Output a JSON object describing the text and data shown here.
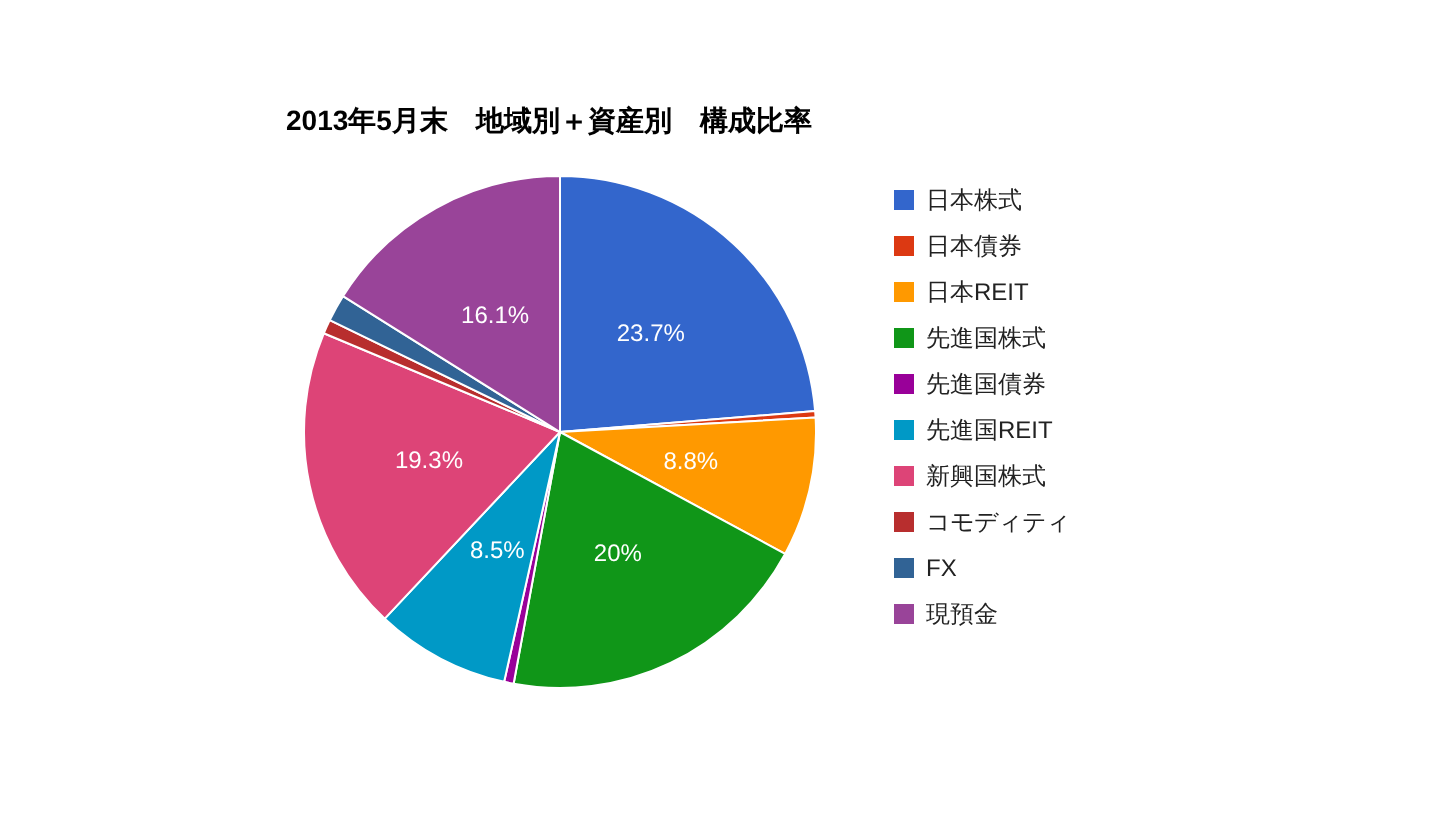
{
  "chart_data": {
    "type": "pie",
    "title": "2013年5月末　地域別＋資産別　構成比率",
    "categories": [
      "日本株式",
      "日本債券",
      "日本REIT",
      "先進国株式",
      "先進国債券",
      "先進国REIT",
      "新興国株式",
      "コモディティ",
      "FX",
      "現預金"
    ],
    "values": [
      23.7,
      0.4,
      8.8,
      20,
      0.6,
      8.5,
      19.3,
      0.9,
      1.7,
      16.1
    ],
    "value_labels": [
      "23.7%",
      null,
      "8.8%",
      "20%",
      null,
      "8.5%",
      "19.3%",
      null,
      null,
      "16.1%"
    ],
    "colors": [
      "#3366cc",
      "#dc3912",
      "#ff9900",
      "#109618",
      "#990099",
      "#0099c6",
      "#dd4477",
      "#b82e2e",
      "#316395",
      "#994499"
    ],
    "legend": "right"
  }
}
